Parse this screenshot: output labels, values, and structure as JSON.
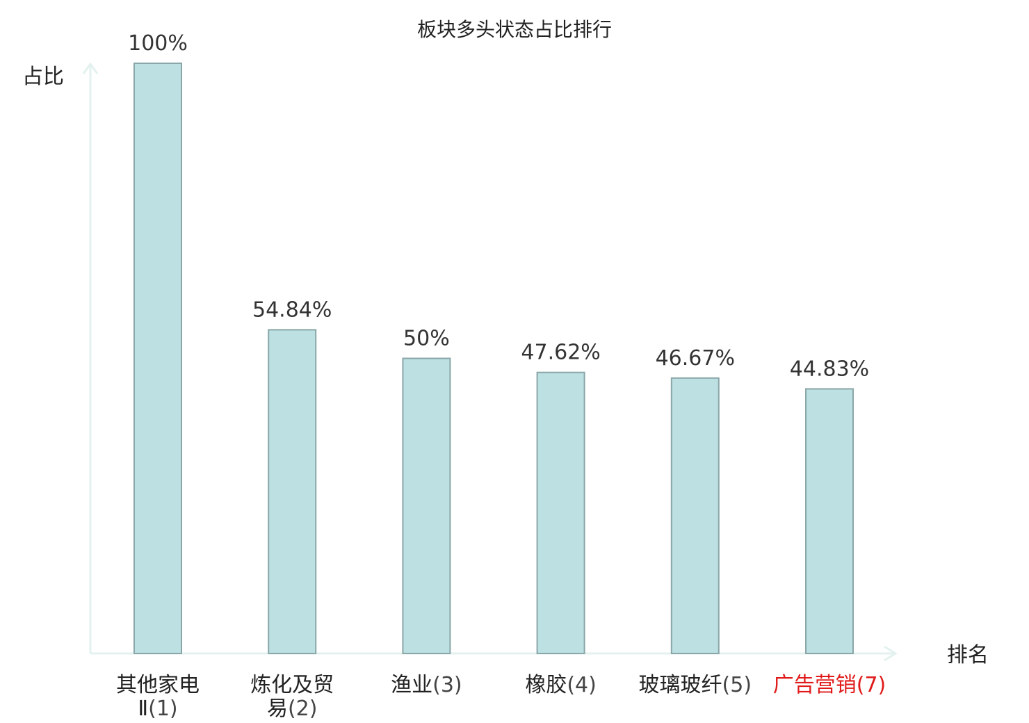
{
  "chart_data": {
    "type": "bar",
    "title": "板块多头状态占比排行",
    "ylabel": "占比",
    "xlabel": "排名",
    "categories": [
      {
        "name_lines": [
          "其他家电",
          "Ⅱ"
        ],
        "rank": "(1)",
        "highlight": false
      },
      {
        "name_lines": [
          "炼化及贸",
          "易"
        ],
        "rank": "(2)",
        "highlight": false
      },
      {
        "name_lines": [
          "渔业"
        ],
        "rank": "(3)",
        "highlight": false
      },
      {
        "name_lines": [
          "橡胶"
        ],
        "rank": "(4)",
        "highlight": false
      },
      {
        "name_lines": [
          "玻璃玻纤"
        ],
        "rank": "(5)",
        "highlight": false
      },
      {
        "name_lines": [
          "广告营销"
        ],
        "rank": "(7)",
        "highlight": true
      }
    ],
    "values": [
      100,
      54.84,
      50,
      47.62,
      46.67,
      44.83
    ],
    "value_labels": [
      "100%",
      "54.84%",
      "50%",
      "47.62%",
      "46.67%",
      "44.83%"
    ],
    "ylim": [
      0,
      100
    ],
    "grid": false,
    "legend": "none",
    "colors": {
      "bar_fill": "#bde0e2",
      "bar_stroke": "#8aa6a8",
      "axis": "#e3f2ef",
      "text": "#222222",
      "rank_text": "#444444",
      "highlight": "#e11b1b"
    }
  }
}
